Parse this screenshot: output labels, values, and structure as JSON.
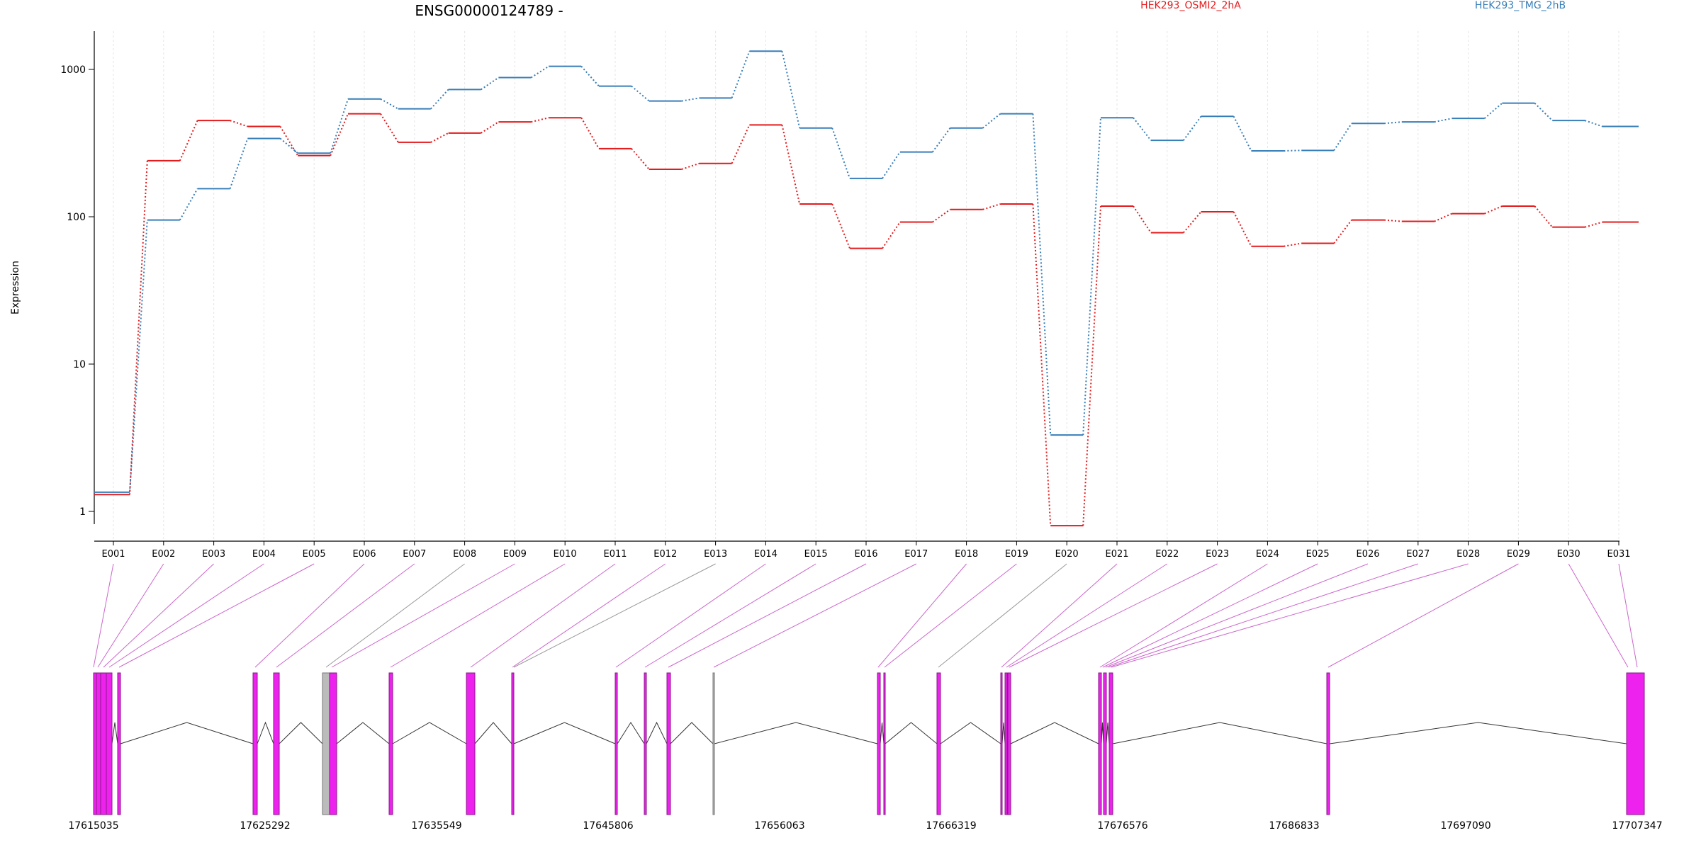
{
  "chart_data": {
    "type": "line",
    "title": "ENSG00000124789 -",
    "ylabel": "Expression",
    "y_scale": "log",
    "y_ticks": [
      1,
      10,
      100,
      1000
    ],
    "y_tick_labels": [
      "1",
      "10",
      "100",
      "1000"
    ],
    "categories": [
      "E001",
      "E002",
      "E003",
      "E004",
      "E005",
      "E006",
      "E007",
      "E008",
      "E009",
      "E010",
      "E011",
      "E012",
      "E013",
      "E014",
      "E015",
      "E016",
      "E017",
      "E018",
      "E019",
      "E020",
      "E021",
      "E022",
      "E023",
      "E024",
      "E025",
      "E026",
      "E027",
      "E028",
      "E029",
      "E030",
      "E031"
    ],
    "series": [
      {
        "name": "HEK293_OSMI2_2hA",
        "color": "#e41a1c",
        "values": [
          1.3,
          240,
          450,
          410,
          260,
          500,
          320,
          370,
          440,
          470,
          290,
          210,
          230,
          420,
          122,
          61,
          92,
          112,
          122,
          0.8,
          118,
          78,
          108,
          63,
          66,
          95,
          93,
          105,
          118,
          85,
          92
        ]
      },
      {
        "name": "HEK293_TMG_2hB",
        "color": "#377eb8",
        "values": [
          1.35,
          95,
          155,
          340,
          270,
          630,
          540,
          730,
          880,
          1050,
          770,
          610,
          640,
          1330,
          400,
          182,
          275,
          400,
          500,
          3.3,
          470,
          330,
          480,
          280,
          282,
          430,
          440,
          465,
          590,
          450,
          410
        ]
      }
    ],
    "gene_model": {
      "coordinate_labels": [
        "17615035",
        "17625292",
        "17635549",
        "17645806",
        "17656063",
        "17666319",
        "17676576",
        "17686833",
        "17697090",
        "17707347"
      ],
      "exon_color": "#ee22ee",
      "intron_color": "#333333"
    }
  }
}
